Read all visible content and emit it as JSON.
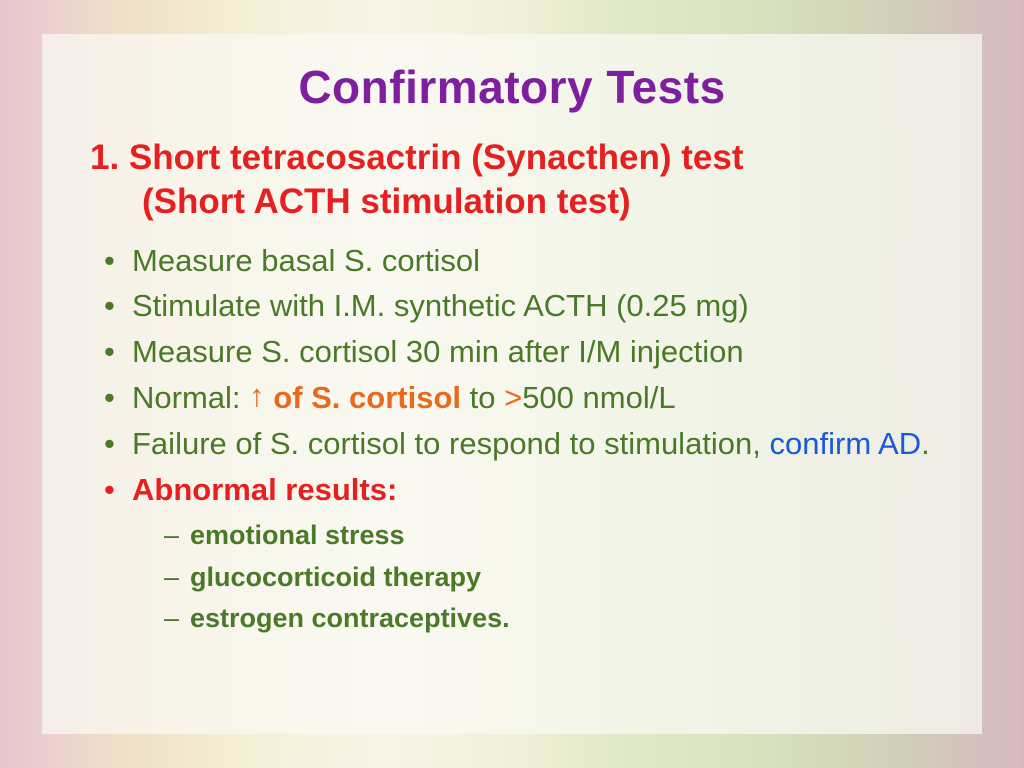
{
  "title": "Confirmatory Tests",
  "heading": {
    "line1": "1. Short tetracosactrin (Synacthen) test",
    "line2": "(Short ACTH stimulation test)"
  },
  "bullets": {
    "b1": "Measure basal S. cortisol",
    "b2": "Stimulate with I.M. synthetic ACTH (0.25 mg)",
    "b3": "Measure S. cortisol 30 min after I/M injection",
    "b4_pre": "Normal: ",
    "b4_arrow": "↑",
    "b4_mid": " of S. cortisol ",
    "b4_to": "to ",
    "b4_gt": ">",
    "b4_end": "500 nmol/L",
    "b5a": "Failure of S. cortisol to respond to stimulation, ",
    "b5b": "confirm AD",
    "b5c": ".",
    "b6": "Abnormal results:"
  },
  "sub": {
    "s1": "emotional stress",
    "s2": "glucocorticoid therapy",
    "s3": "estrogen contraceptives."
  },
  "colors": {
    "title": "#7e1fa0",
    "red": "#e62020",
    "green": "#4a7a28",
    "orange": "#e86a1a",
    "blue": "#1a5ad6"
  }
}
